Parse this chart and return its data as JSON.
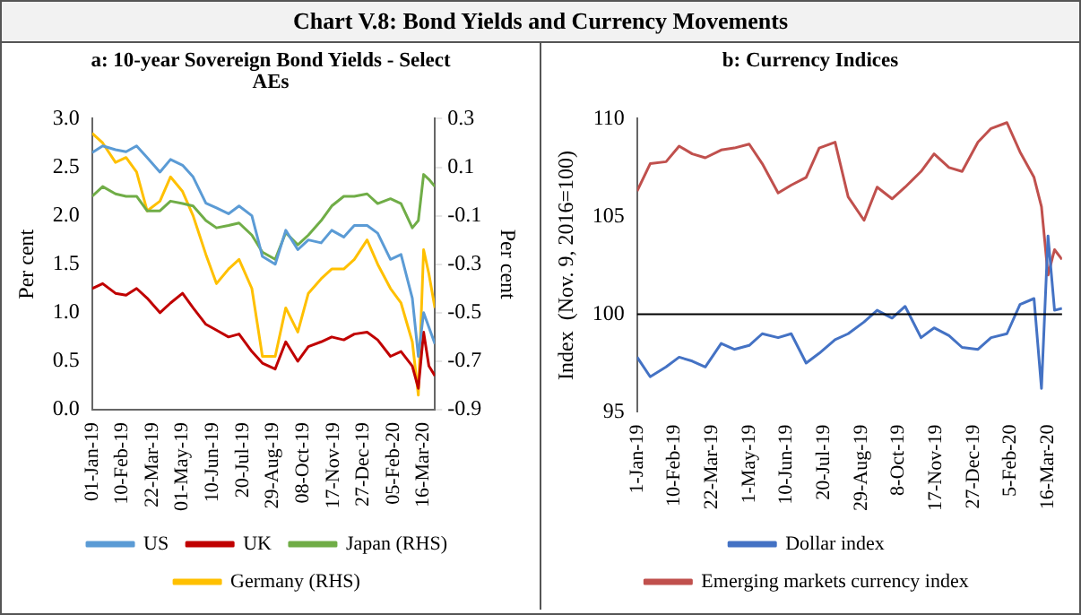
{
  "chart_data": [
    {
      "type": "line",
      "title": "a: 10-year Sovereign Bond Yields - Select AEs",
      "ylabel": "Per cent",
      "y2label": "Per cent",
      "annotations": [
        "Chart V.8: Bond Yields and Currency Movements"
      ],
      "x": [
        "2019-01-01",
        "2019-01-15",
        "2019-02-01",
        "2019-02-15",
        "2019-03-01",
        "2019-03-15",
        "2019-04-01",
        "2019-04-15",
        "2019-05-01",
        "2019-05-15",
        "2019-06-01",
        "2019-06-15",
        "2019-07-01",
        "2019-07-15",
        "2019-08-01",
        "2019-08-15",
        "2019-09-01",
        "2019-09-15",
        "2019-10-01",
        "2019-10-15",
        "2019-11-01",
        "2019-11-15",
        "2019-12-01",
        "2019-12-15",
        "2020-01-01",
        "2020-01-15",
        "2020-02-01",
        "2020-02-15",
        "2020-03-01",
        "2020-03-09",
        "2020-03-16",
        "2020-03-23",
        "2020-03-31"
      ],
      "xlim": [
        "2019-01-01",
        "2020-03-31"
      ],
      "xticks": [
        {
          "value": "2019-01-01",
          "label": "01-Jan-19"
        },
        {
          "value": "2019-02-10",
          "label": "10-Feb-19"
        },
        {
          "value": "2019-03-22",
          "label": "22-Mar-19"
        },
        {
          "value": "2019-05-01",
          "label": "01-May-19"
        },
        {
          "value": "2019-06-10",
          "label": "10-Jun-19"
        },
        {
          "value": "2019-07-20",
          "label": "20-Jul-19"
        },
        {
          "value": "2019-08-29",
          "label": "29-Aug-19"
        },
        {
          "value": "2019-10-08",
          "label": "08-Oct-19"
        },
        {
          "value": "2019-11-17",
          "label": "17-Nov-19"
        },
        {
          "value": "2019-12-27",
          "label": "27-Dec-19"
        },
        {
          "value": "2020-02-05",
          "label": "05-Feb-20"
        },
        {
          "value": "2020-03-16",
          "label": "16-Mar-20"
        }
      ],
      "ylim": [
        0,
        3
      ],
      "yticks": [
        {
          "value": 0,
          "label": "0.0"
        },
        {
          "value": 0.5,
          "label": "0.5"
        },
        {
          "value": 1,
          "label": "1.0"
        },
        {
          "value": 1.5,
          "label": "1.5"
        },
        {
          "value": 2,
          "label": "2.0"
        },
        {
          "value": 2.5,
          "label": "2.5"
        },
        {
          "value": 3,
          "label": "3.0"
        }
      ],
      "y2lim": [
        -0.9,
        0.3
      ],
      "y2ticks": [
        -0.9,
        -0.7,
        -0.5,
        -0.3,
        -0.1,
        0.1,
        0.3
      ],
      "grid": false,
      "legend": "bottom",
      "series": [
        {
          "name": "US",
          "color": "#5b9bd5",
          "values": [
            2.65,
            2.72,
            2.68,
            2.66,
            2.72,
            2.6,
            2.45,
            2.58,
            2.52,
            2.4,
            2.13,
            2.08,
            2.02,
            2.1,
            2.0,
            1.58,
            1.5,
            1.85,
            1.65,
            1.75,
            1.72,
            1.85,
            1.78,
            1.9,
            1.9,
            1.82,
            1.55,
            1.6,
            1.15,
            0.55,
            1.0,
            0.85,
            0.68
          ]
        },
        {
          "name": "UK",
          "color": "#c00000",
          "values": [
            1.25,
            1.3,
            1.2,
            1.18,
            1.25,
            1.15,
            1.0,
            1.1,
            1.2,
            1.05,
            0.88,
            0.82,
            0.75,
            0.78,
            0.6,
            0.48,
            0.42,
            0.7,
            0.5,
            0.65,
            0.7,
            0.75,
            0.72,
            0.78,
            0.8,
            0.72,
            0.55,
            0.6,
            0.45,
            0.22,
            0.8,
            0.45,
            0.35
          ]
        },
        {
          "name": "Japan (RHS)",
          "color": "#70ad47",
          "axis": "y2",
          "values": [
            -0.02,
            0.02,
            -0.01,
            -0.02,
            -0.02,
            -0.08,
            -0.08,
            -0.04,
            -0.05,
            -0.06,
            -0.12,
            -0.15,
            -0.14,
            -0.13,
            -0.18,
            -0.25,
            -0.28,
            -0.17,
            -0.22,
            -0.18,
            -0.12,
            -0.06,
            -0.02,
            -0.02,
            -0.01,
            -0.05,
            -0.03,
            -0.05,
            -0.15,
            -0.12,
            0.07,
            0.05,
            0.02
          ]
        },
        {
          "name": "Germany (RHS)",
          "color": "#ffc000",
          "axis": "y2",
          "values": [
            0.24,
            0.2,
            0.12,
            0.14,
            0.08,
            -0.08,
            -0.04,
            0.06,
            0.0,
            -0.1,
            -0.26,
            -0.38,
            -0.32,
            -0.28,
            -0.4,
            -0.68,
            -0.68,
            -0.48,
            -0.58,
            -0.42,
            -0.36,
            -0.32,
            -0.32,
            -0.28,
            -0.2,
            -0.3,
            -0.4,
            -0.46,
            -0.62,
            -0.84,
            -0.24,
            -0.34,
            -0.48
          ]
        }
      ]
    },
    {
      "type": "line",
      "title": "b: Currency Indices",
      "ylabel": "Index  (Nov. 9, 2016=100)",
      "x": [
        "2019-01-01",
        "2019-01-15",
        "2019-02-01",
        "2019-02-15",
        "2019-03-01",
        "2019-03-15",
        "2019-04-01",
        "2019-04-15",
        "2019-05-01",
        "2019-05-15",
        "2019-06-01",
        "2019-06-15",
        "2019-07-01",
        "2019-07-15",
        "2019-08-01",
        "2019-08-15",
        "2019-09-01",
        "2019-09-15",
        "2019-10-01",
        "2019-10-15",
        "2019-11-01",
        "2019-11-15",
        "2019-12-01",
        "2019-12-15",
        "2020-01-01",
        "2020-01-15",
        "2020-02-01",
        "2020-02-15",
        "2020-03-01",
        "2020-03-09",
        "2020-03-16",
        "2020-03-23",
        "2020-03-31"
      ],
      "xlim": [
        "2019-01-01",
        "2020-03-31"
      ],
      "xticks": [
        {
          "value": "2019-01-01",
          "label": "1-Jan-19"
        },
        {
          "value": "2019-02-10",
          "label": "10-Feb-19"
        },
        {
          "value": "2019-03-22",
          "label": "22-Mar-19"
        },
        {
          "value": "2019-05-01",
          "label": "1-May-19"
        },
        {
          "value": "2019-06-10",
          "label": "10-Jun-19"
        },
        {
          "value": "2019-07-20",
          "label": "20-Jul-19"
        },
        {
          "value": "2019-08-29",
          "label": "29-Aug-19"
        },
        {
          "value": "2019-10-08",
          "label": "8-Oct-19"
        },
        {
          "value": "2019-11-17",
          "label": "17-Nov-19"
        },
        {
          "value": "2019-12-27",
          "label": "27-Dec-19"
        },
        {
          "value": "2020-02-05",
          "label": "5-Feb-20"
        },
        {
          "value": "2020-03-16",
          "label": "16-Mar-20"
        }
      ],
      "ylim": [
        95,
        110
      ],
      "yticks": [
        95,
        100,
        105,
        110
      ],
      "ref_lines": [
        {
          "axis": "y",
          "value": 100,
          "color": "#000000"
        }
      ],
      "grid": false,
      "legend": "bottom",
      "series": [
        {
          "name": "Dollar index",
          "color": "#4472c4",
          "values": [
            97.8,
            96.8,
            97.3,
            97.8,
            97.6,
            97.3,
            98.5,
            98.2,
            98.4,
            99.0,
            98.8,
            99.0,
            97.5,
            98.0,
            98.7,
            99.0,
            99.6,
            100.2,
            99.8,
            100.4,
            98.8,
            99.3,
            98.9,
            98.3,
            98.2,
            98.8,
            99.0,
            100.5,
            100.8,
            96.2,
            104.0,
            100.2,
            100.3
          ]
        },
        {
          "name": "Emerging markets currency index",
          "color": "#c0504d",
          "values": [
            106.3,
            107.7,
            107.8,
            108.6,
            108.2,
            108.0,
            108.4,
            108.5,
            108.7,
            107.7,
            106.2,
            106.6,
            107.0,
            108.5,
            108.8,
            106.0,
            104.8,
            106.5,
            105.9,
            106.5,
            107.3,
            108.2,
            107.5,
            107.3,
            108.8,
            109.5,
            109.8,
            108.3,
            107.0,
            105.5,
            102.0,
            103.3,
            102.8
          ]
        }
      ]
    }
  ]
}
